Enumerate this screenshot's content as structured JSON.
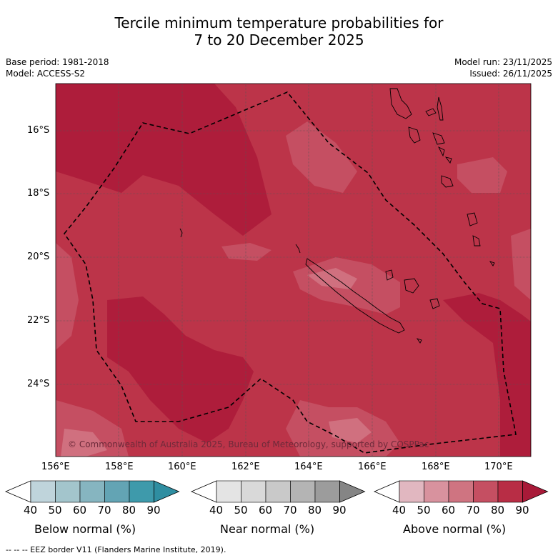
{
  "title_line1": "Tercile minimum temperature probabilities for",
  "title_line2": "7 to 20 December 2025",
  "base_period": "Base period: 1981-2018",
  "model": "Model: ACCESS-S2",
  "model_run": "Model run: 23/11/2025",
  "issued": "Issued: 26/11/2025",
  "lat_labels": [
    "16°S",
    "18°S",
    "20°S",
    "22°S",
    "24°S"
  ],
  "lon_labels": [
    "156°E",
    "158°E",
    "160°E",
    "162°E",
    "164°E",
    "166°E",
    "168°E",
    "170°E"
  ],
  "copyright": "© Commonwealth of Australia 2025, Bureau of Meteorology, supported by COSPPac",
  "colorbars": [
    {
      "label": "Below normal (%)",
      "ticks": [
        "40",
        "50",
        "60",
        "70",
        "80",
        "90"
      ],
      "colors": [
        "#ffffff",
        "#bfd4db",
        "#a3c5cc",
        "#86b5c0",
        "#63a4b4",
        "#3e9aab",
        "#2f8ea1"
      ]
    },
    {
      "label": "Near normal (%)",
      "ticks": [
        "40",
        "50",
        "60",
        "70",
        "80",
        "90"
      ],
      "colors": [
        "#ffffff",
        "#e4e4e4",
        "#d9d9d9",
        "#c9c9c9",
        "#b4b4b4",
        "#9c9c9c",
        "#858585"
      ]
    },
    {
      "label": "Above normal (%)",
      "ticks": [
        "40",
        "50",
        "60",
        "70",
        "80",
        "90"
      ],
      "colors": [
        "#ffffff",
        "#e1b7c0",
        "#d8929e",
        "#cf7481",
        "#c54f62",
        "#b82d45",
        "#a81a38"
      ]
    }
  ],
  "footnote": "--  --  -- EEZ border V11 (Flanders Marine Institute, 2019).",
  "map_colors": {
    "above_70": "#c54f62",
    "above_80": "#bb3347",
    "above_90": "#ad1c3a",
    "above_60": "#cf7481"
  }
}
